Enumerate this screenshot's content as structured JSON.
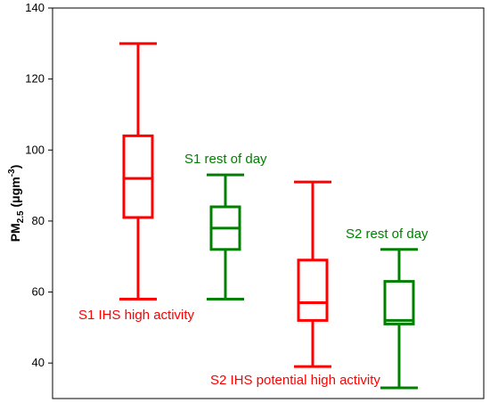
{
  "chart_data": {
    "type": "boxplot",
    "ylabel": {
      "main": "PM",
      "sub": "2.5",
      "unit_pre": " (μgm",
      "unit_sup": "-3",
      "unit_post": ")"
    },
    "ylim": [
      30,
      140
    ],
    "y_ticks": [
      "40",
      "60",
      "80",
      "100",
      "120",
      "140"
    ],
    "grid": false,
    "boxes": [
      {
        "label": "S1 IHS high activity",
        "color": "#ff0000",
        "min": 58,
        "q1": 81,
        "median": 92,
        "q3": 104,
        "max": 130
      },
      {
        "label": "S1 rest of day",
        "color": "#008000",
        "min": 58,
        "q1": 72,
        "median": 78,
        "q3": 84,
        "max": 93
      },
      {
        "label": "S2 IHS potential high activity",
        "color": "#ff0000",
        "min": 39,
        "q1": 52,
        "median": 57,
        "q3": 69,
        "max": 91
      },
      {
        "label": "S2 rest of day",
        "color": "#008000",
        "min": 33,
        "q1": 51,
        "median": 52,
        "q3": 63,
        "max": 72
      }
    ]
  }
}
